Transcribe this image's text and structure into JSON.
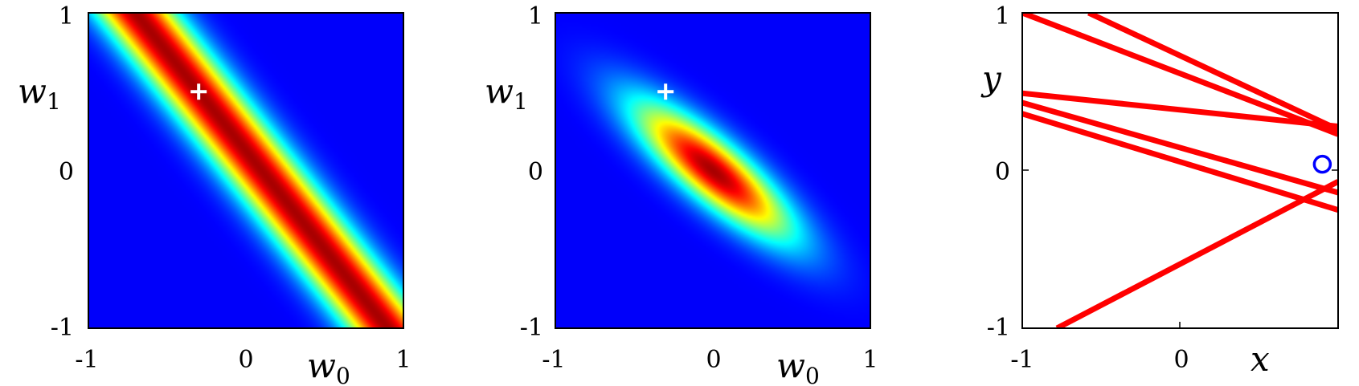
{
  "chart_data": [
    {
      "type": "heatmap",
      "xlim": [
        -1,
        1
      ],
      "ylim": [
        -1,
        1
      ],
      "xticks": [
        "-1",
        "0",
        "1"
      ],
      "yticks": [
        "-1",
        "0",
        "1"
      ],
      "xlabel": "w",
      "xlabel_sub": "0",
      "ylabel": "w",
      "ylabel_sub": "1",
      "colormap": "jet",
      "surface": {
        "kind": "ridge",
        "slope": -1.25,
        "intercept": 0.125,
        "width": 0.28
      },
      "marker": {
        "symbol": "+",
        "x": -0.3,
        "y": 0.5,
        "color": "#ffffff"
      }
    },
    {
      "type": "heatmap",
      "xlim": [
        -1,
        1
      ],
      "ylim": [
        -1,
        1
      ],
      "xticks": [
        "-1",
        "0",
        "1"
      ],
      "yticks": [
        "-1",
        "0",
        "1"
      ],
      "xlabel": "w",
      "xlabel_sub": "0",
      "ylabel": "w",
      "ylabel_sub": "1",
      "colormap": "jet",
      "surface": {
        "kind": "gaussian",
        "center": [
          0,
          0
        ],
        "rotation_deg": -40,
        "sigma_major": 0.44,
        "sigma_minor": 0.13
      },
      "marker": {
        "symbol": "+",
        "x": -0.3,
        "y": 0.5,
        "color": "#ffffff"
      }
    },
    {
      "type": "line",
      "xlim": [
        -1,
        1
      ],
      "ylim": [
        -1,
        1
      ],
      "xticks": [
        "-1",
        "0"
      ],
      "yticks": [
        "-1",
        "0",
        "1"
      ],
      "xlabel": "x",
      "ylabel": "y",
      "line_color": "#ff0000",
      "series": [
        {
          "x": [
            -1,
            1
          ],
          "y": [
            1.0,
            0.23
          ]
        },
        {
          "x": [
            -0.58,
            1
          ],
          "y": [
            1.0,
            0.26
          ]
        },
        {
          "x": [
            -1,
            1
          ],
          "y": [
            0.49,
            0.28
          ]
        },
        {
          "x": [
            -1,
            1
          ],
          "y": [
            0.43,
            -0.14
          ]
        },
        {
          "x": [
            -1,
            1
          ],
          "y": [
            0.36,
            -0.25
          ]
        },
        {
          "x": [
            -0.78,
            1
          ],
          "y": [
            -1.0,
            -0.07
          ]
        }
      ],
      "points": [
        {
          "x": 0.9,
          "y": 0.04,
          "color": "#0000ff",
          "marker": "o"
        }
      ]
    }
  ]
}
